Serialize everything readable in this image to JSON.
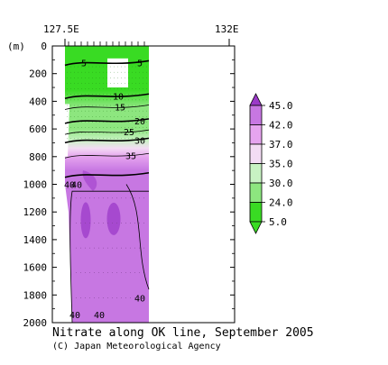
{
  "chart_data": {
    "type": "heatmap",
    "title": "Nitrate along OK line, September 2005",
    "credit": "(C) Japan Meteorological Agency",
    "ylabel": "(m)",
    "x_ticks": [
      "127.5E",
      "132E"
    ],
    "y_ticks": [
      "0",
      "200",
      "400",
      "600",
      "800",
      "1000",
      "1200",
      "1400",
      "1600",
      "1800",
      "2000"
    ],
    "ylim": [
      2000,
      0
    ],
    "colorbar": {
      "levels": [
        "45.0",
        "42.0",
        "37.0",
        "35.0",
        "30.0",
        "24.0",
        "5.0"
      ],
      "colors": [
        "#9b39c8",
        "#c777e2",
        "#e6a4ef",
        "#f3dcf4",
        "#c8f2c3",
        "#8de67f",
        "#39db23"
      ]
    },
    "contours": [
      {
        "value": 5,
        "depth_m": 120
      },
      {
        "value": 10,
        "depth_m": 360
      },
      {
        "value": 15,
        "depth_m": 440
      },
      {
        "value": 20,
        "depth_m": 540
      },
      {
        "value": 25,
        "depth_m": 620
      },
      {
        "value": 30,
        "depth_m": 680
      },
      {
        "value": 35,
        "depth_m": 790
      },
      {
        "value": 40,
        "depth_m": 930
      }
    ],
    "contour_labels": [
      {
        "text": "5",
        "depth_m": 120
      },
      {
        "text": "5",
        "depth_m": 120
      },
      {
        "text": "10",
        "depth_m": 360
      },
      {
        "text": "15",
        "depth_m": 440
      },
      {
        "text": "20",
        "depth_m": 540
      },
      {
        "text": "25",
        "depth_m": 620
      },
      {
        "text": "30",
        "depth_m": 680
      },
      {
        "text": "35",
        "depth_m": 790
      },
      {
        "text": "40",
        "depth_m": 1000
      },
      {
        "text": "40",
        "depth_m": 1820
      },
      {
        "text": "40",
        "depth_m": 1940
      },
      {
        "text": "40",
        "depth_m": 1000
      },
      {
        "text": "40",
        "depth_m": 1940
      }
    ]
  }
}
